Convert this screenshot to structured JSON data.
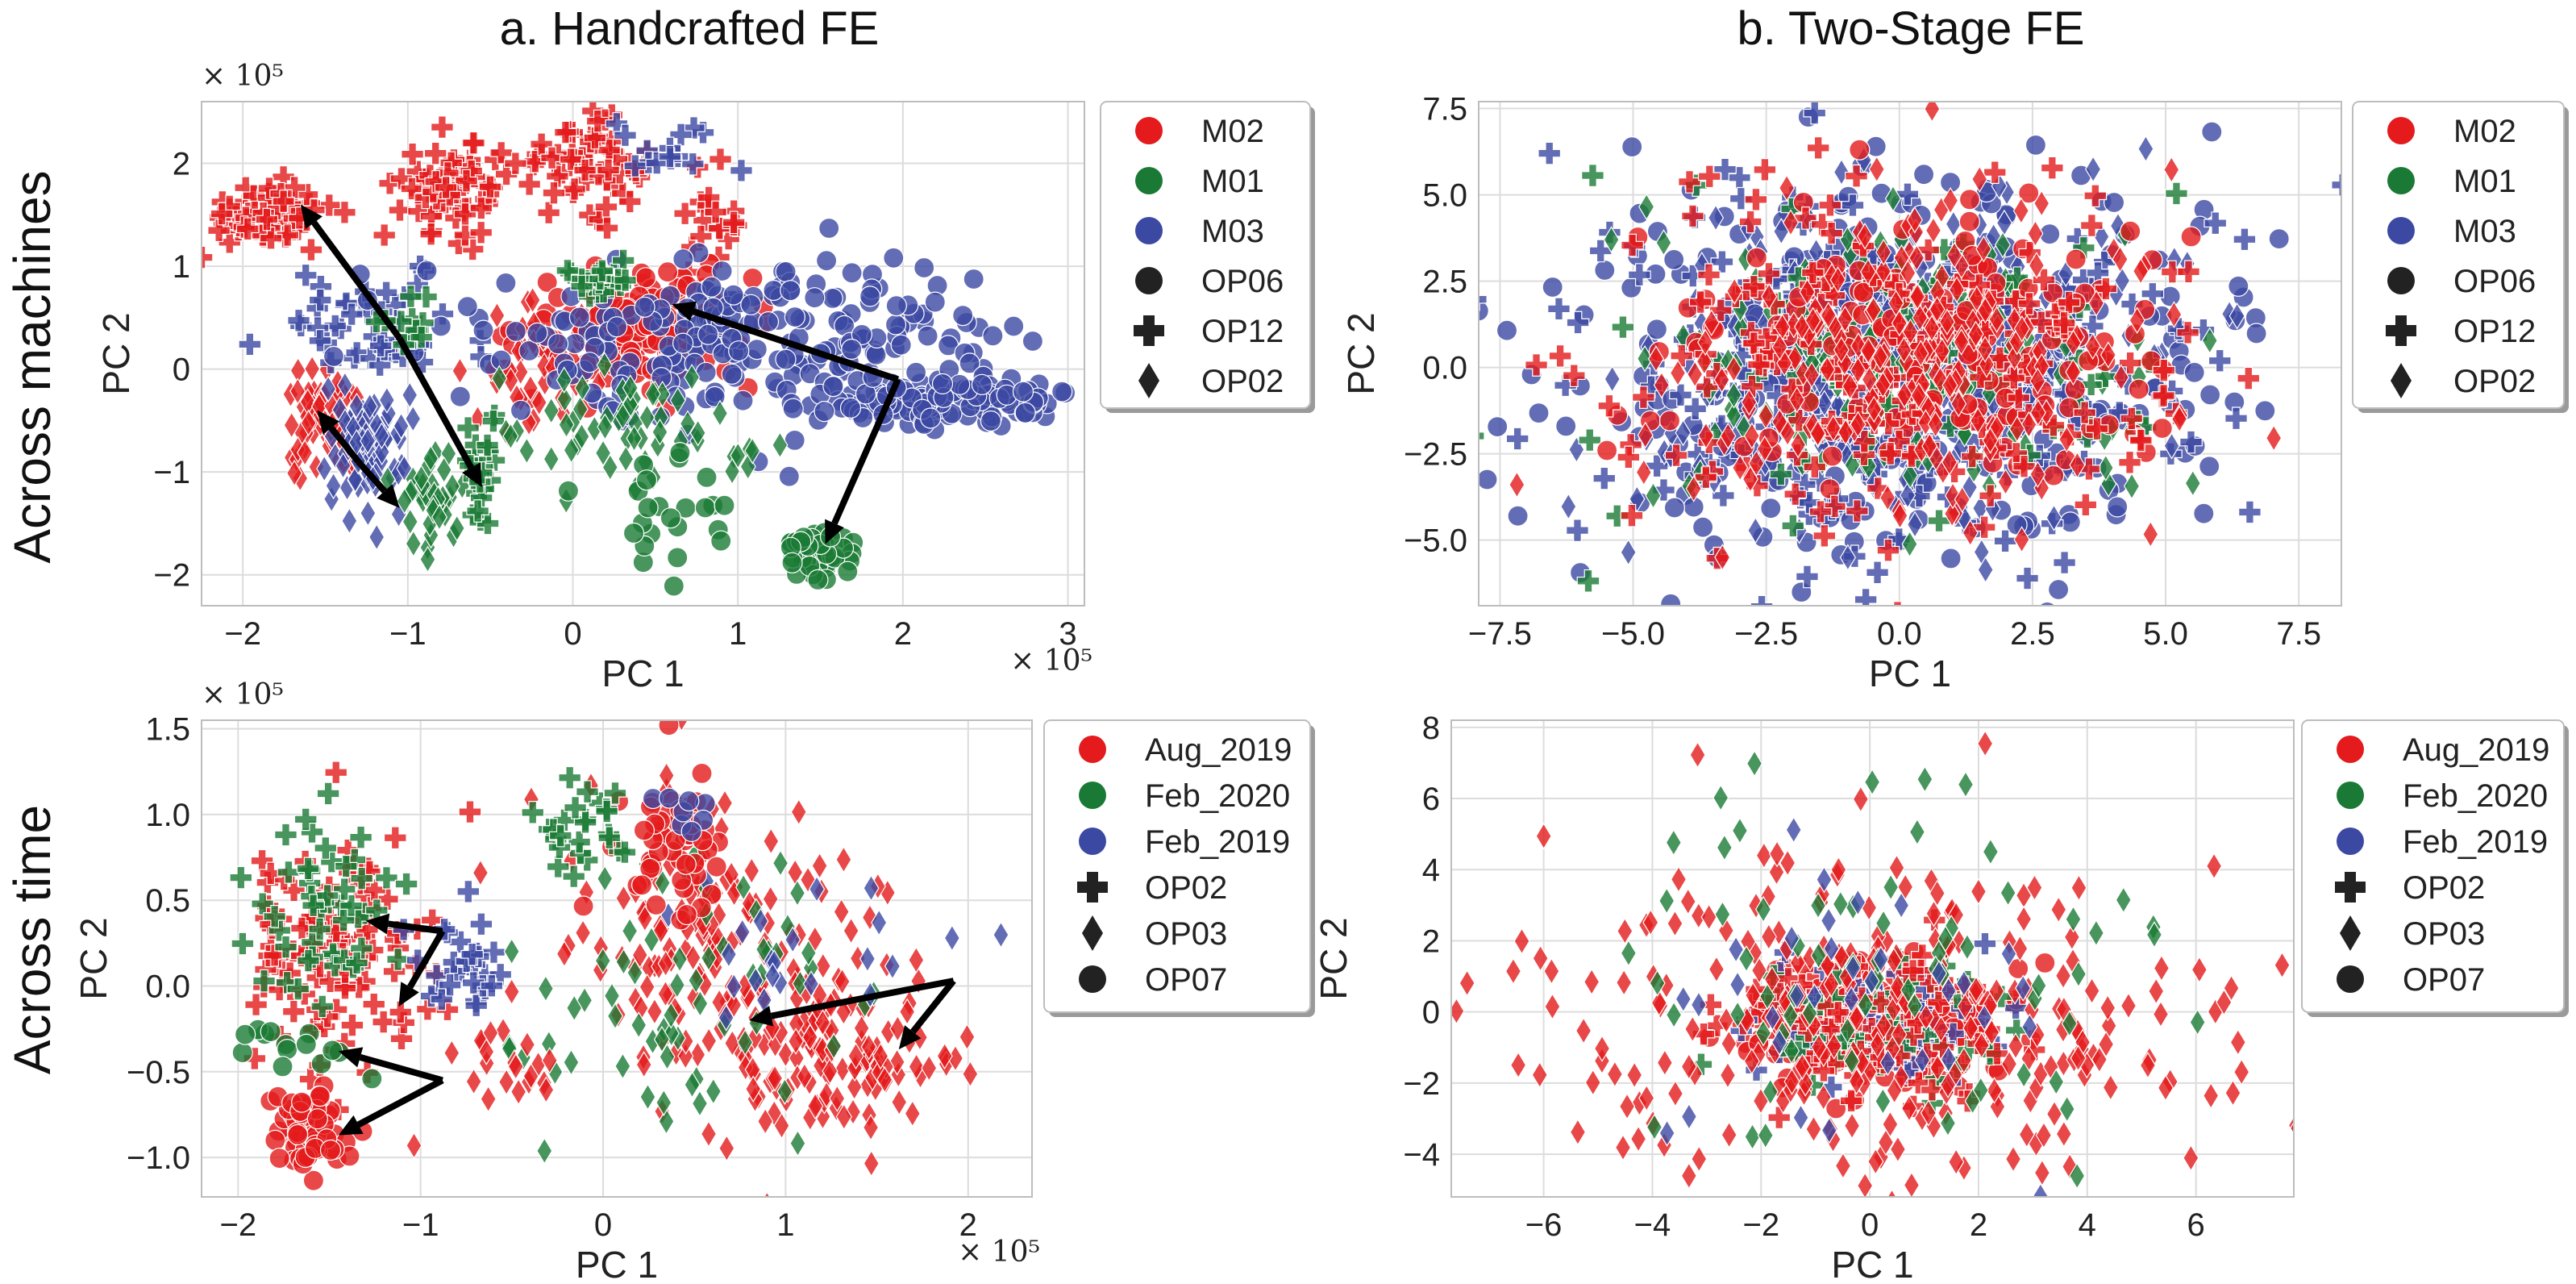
{
  "figure": {
    "column_titles": [
      "a. Handcrafted FE",
      "b. Two-Stage FE"
    ],
    "row_titles": [
      "Across machines",
      "Across time"
    ]
  },
  "colors": {
    "red": "#e41a1c",
    "green": "#1a7a35",
    "blue": "#3c49a3",
    "marker_black": "#222222"
  },
  "chart_data": [
    {
      "id": "a_top",
      "type": "scatter",
      "title": "",
      "xlabel": "PC 1",
      "ylabel": "PC 2",
      "xlim": [
        -2.25,
        3.1
      ],
      "ylim": [
        -2.3,
        2.6
      ],
      "xticks": [
        -2,
        -1,
        0,
        1,
        2,
        3
      ],
      "yticks": [
        -2,
        -1,
        0,
        1,
        2
      ],
      "xtick_labels": [
        "−2",
        "−1",
        "0",
        "1",
        "2",
        "3"
      ],
      "ytick_labels": [
        "−2",
        "−1",
        "0",
        "1",
        "2"
      ],
      "x_multiplier": "× 10⁵",
      "y_multiplier": "× 10⁵",
      "grid": true,
      "legend_position": "outside-right",
      "legend": [
        {
          "label": "M02",
          "marker": "circle",
          "color": "red"
        },
        {
          "label": "M01",
          "marker": "circle",
          "color": "green"
        },
        {
          "label": "M03",
          "marker": "circle",
          "color": "blue"
        },
        {
          "label": "OP06",
          "marker": "circle",
          "color": "marker_black"
        },
        {
          "label": "OP12",
          "marker": "plus",
          "color": "marker_black"
        },
        {
          "label": "OP02",
          "marker": "diamond",
          "color": "marker_black"
        }
      ],
      "clusters": [
        {
          "color": "red",
          "marker": "plus",
          "cx": -1.85,
          "cy": 1.5,
          "sx": 0.2,
          "sy": 0.15,
          "n": 70
        },
        {
          "color": "red",
          "marker": "plus",
          "cx": -0.7,
          "cy": 1.75,
          "sx": 0.17,
          "sy": 0.22,
          "n": 70
        },
        {
          "color": "red",
          "marker": "plus",
          "cx": 0.05,
          "cy": 2.0,
          "sx": 0.18,
          "sy": 0.2,
          "n": 60
        },
        {
          "color": "red",
          "marker": "plus",
          "cx": 0.85,
          "cy": 1.4,
          "sx": 0.12,
          "sy": 0.25,
          "n": 20
        },
        {
          "color": "red",
          "marker": "diamond",
          "cx": -1.5,
          "cy": -0.55,
          "sx": 0.12,
          "sy": 0.25,
          "n": 70
        },
        {
          "color": "red",
          "marker": "circle",
          "cx": 0.4,
          "cy": 0.4,
          "sx": 0.35,
          "sy": 0.3,
          "n": 140
        },
        {
          "color": "red",
          "marker": "diamond",
          "cx": -0.25,
          "cy": 0.0,
          "sx": 0.2,
          "sy": 0.3,
          "n": 40
        },
        {
          "color": "blue",
          "marker": "diamond",
          "cx": -1.25,
          "cy": -0.75,
          "sx": 0.12,
          "sy": 0.3,
          "n": 80
        },
        {
          "color": "blue",
          "marker": "plus",
          "cx": -1.2,
          "cy": 0.4,
          "sx": 0.3,
          "sy": 0.3,
          "n": 50
        },
        {
          "color": "blue",
          "marker": "circle",
          "cx": 1.1,
          "cy": 0.3,
          "sx": 0.8,
          "sy": 0.4,
          "n": 240
        },
        {
          "color": "blue",
          "marker": "circle",
          "cx": 2.3,
          "cy": -0.3,
          "sx": 0.35,
          "sy": 0.12,
          "n": 120
        },
        {
          "color": "blue",
          "marker": "plus",
          "cx": 0.6,
          "cy": 2.1,
          "sx": 0.25,
          "sy": 0.15,
          "n": 15
        },
        {
          "color": "green",
          "marker": "diamond",
          "cx": -0.85,
          "cy": -1.25,
          "sx": 0.1,
          "sy": 0.2,
          "n": 40
        },
        {
          "color": "green",
          "marker": "plus",
          "cx": -0.55,
          "cy": -1.1,
          "sx": 0.07,
          "sy": 0.25,
          "n": 25
        },
        {
          "color": "green",
          "marker": "diamond",
          "cx": 0.35,
          "cy": -0.6,
          "sx": 0.35,
          "sy": 0.3,
          "n": 60
        },
        {
          "color": "green",
          "marker": "circle",
          "cx": 1.5,
          "cy": -1.8,
          "sx": 0.12,
          "sy": 0.12,
          "n": 50
        },
        {
          "color": "green",
          "marker": "circle",
          "cx": 0.6,
          "cy": -1.35,
          "sx": 0.3,
          "sy": 0.35,
          "n": 25
        },
        {
          "color": "green",
          "marker": "plus",
          "cx": 0.15,
          "cy": 0.9,
          "sx": 0.1,
          "sy": 0.1,
          "n": 20
        },
        {
          "color": "green",
          "marker": "plus",
          "cx": -1.0,
          "cy": 0.45,
          "sx": 0.1,
          "sy": 0.15,
          "n": 12
        }
      ],
      "arrows": [
        {
          "from": [
            -1.05,
            0.3
          ],
          "to": [
            -1.65,
            1.6
          ]
        },
        {
          "from": [
            -1.05,
            0.3
          ],
          "to": [
            -0.55,
            -1.15
          ]
        },
        {
          "from": [
            -1.3,
            -0.9
          ],
          "to": [
            -1.55,
            -0.4
          ]
        },
        {
          "from": [
            -1.3,
            -0.9
          ],
          "to": [
            -1.05,
            -1.35
          ]
        },
        {
          "from": [
            1.97,
            -0.1
          ],
          "to": [
            0.6,
            0.63
          ]
        },
        {
          "from": [
            1.97,
            -0.1
          ],
          "to": [
            1.53,
            -1.7
          ]
        }
      ]
    },
    {
      "id": "b_top",
      "type": "scatter",
      "title": "",
      "xlabel": "PC 1",
      "ylabel": "PC 2",
      "xlim": [
        -7.9,
        8.3
      ],
      "ylim": [
        -6.9,
        7.7
      ],
      "xticks": [
        -7.5,
        -5.0,
        -2.5,
        0.0,
        2.5,
        5.0,
        7.5
      ],
      "yticks": [
        -5.0,
        -2.5,
        0.0,
        2.5,
        5.0,
        7.5
      ],
      "xtick_labels": [
        "−7.5",
        "−5.0",
        "−2.5",
        "0.0",
        "2.5",
        "5.0",
        "7.5"
      ],
      "ytick_labels": [
        "−5.0",
        "−2.5",
        "0.0",
        "2.5",
        "5.0",
        "7.5"
      ],
      "grid": true,
      "legend_position": "outside-right",
      "legend": [
        {
          "label": "M02",
          "marker": "circle",
          "color": "red"
        },
        {
          "label": "M01",
          "marker": "circle",
          "color": "green"
        },
        {
          "label": "M03",
          "marker": "circle",
          "color": "blue"
        },
        {
          "label": "OP06",
          "marker": "circle",
          "color": "marker_black"
        },
        {
          "label": "OP12",
          "marker": "plus",
          "color": "marker_black"
        },
        {
          "label": "OP02",
          "marker": "diamond",
          "color": "marker_black"
        }
      ],
      "clusters": [
        {
          "color": "blue",
          "marker": "circle",
          "cx": 0.0,
          "cy": 0.0,
          "sx": 2.9,
          "sy": 2.8,
          "n": 420
        },
        {
          "color": "blue",
          "marker": "plus",
          "cx": 0.0,
          "cy": 0.0,
          "sx": 3.2,
          "sy": 3.0,
          "n": 200
        },
        {
          "color": "blue",
          "marker": "diamond",
          "cx": 0.0,
          "cy": 0.0,
          "sx": 2.7,
          "sy": 2.6,
          "n": 180
        },
        {
          "color": "green",
          "marker": "diamond",
          "cx": 0.0,
          "cy": 0.0,
          "sx": 2.2,
          "sy": 2.0,
          "n": 160
        },
        {
          "color": "green",
          "marker": "plus",
          "cx": 0.0,
          "cy": 0.0,
          "sx": 3.0,
          "sy": 2.8,
          "n": 50
        },
        {
          "color": "red",
          "marker": "circle",
          "cx": 0.5,
          "cy": 0.5,
          "sx": 2.2,
          "sy": 2.0,
          "n": 180
        },
        {
          "color": "red",
          "marker": "plus",
          "cx": 0.0,
          "cy": 0.0,
          "sx": 2.8,
          "sy": 2.6,
          "n": 170
        },
        {
          "color": "red",
          "marker": "diamond",
          "cx": 0.0,
          "cy": 0.0,
          "sx": 2.4,
          "sy": 2.2,
          "n": 220
        }
      ],
      "arrows": []
    },
    {
      "id": "a_bottom",
      "type": "scatter",
      "title": "",
      "xlabel": "PC 1",
      "ylabel": "PC 2",
      "xlim": [
        -2.2,
        2.35
      ],
      "ylim": [
        -1.23,
        1.55
      ],
      "xticks": [
        -2,
        -1,
        0,
        1,
        2
      ],
      "yticks": [
        -1.0,
        -0.5,
        0.0,
        0.5,
        1.0,
        1.5
      ],
      "xtick_labels": [
        "−2",
        "−1",
        "0",
        "1",
        "2"
      ],
      "ytick_labels": [
        "−1.0",
        "−0.5",
        "0.0",
        "0.5",
        "1.0",
        "1.5"
      ],
      "x_multiplier": "× 10⁵",
      "y_multiplier": "× 10⁵",
      "grid": true,
      "legend_position": "outside-right",
      "legend": [
        {
          "label": "Aug_2019",
          "marker": "circle",
          "color": "red"
        },
        {
          "label": "Feb_2020",
          "marker": "circle",
          "color": "green"
        },
        {
          "label": "Feb_2019",
          "marker": "circle",
          "color": "blue"
        },
        {
          "label": "OP02",
          "marker": "plus",
          "color": "marker_black"
        },
        {
          "label": "OP03",
          "marker": "diamond",
          "color": "marker_black"
        },
        {
          "label": "OP07",
          "marker": "circle",
          "color": "marker_black"
        }
      ],
      "clusters": [
        {
          "color": "red",
          "marker": "plus",
          "cx": -1.45,
          "cy": 0.2,
          "sx": 0.3,
          "sy": 0.35,
          "n": 110
        },
        {
          "color": "green",
          "marker": "plus",
          "cx": -1.55,
          "cy": 0.45,
          "sx": 0.2,
          "sy": 0.3,
          "n": 50
        },
        {
          "color": "blue",
          "marker": "plus",
          "cx": -0.8,
          "cy": 0.15,
          "sx": 0.15,
          "sy": 0.15,
          "n": 30
        },
        {
          "color": "red",
          "marker": "circle",
          "cx": -1.6,
          "cy": -0.85,
          "sx": 0.1,
          "sy": 0.12,
          "n": 60
        },
        {
          "color": "green",
          "marker": "circle",
          "cx": -1.75,
          "cy": -0.35,
          "sx": 0.15,
          "sy": 0.08,
          "n": 14
        },
        {
          "color": "red",
          "marker": "diamond",
          "cx": 1.25,
          "cy": -0.4,
          "sx": 0.35,
          "sy": 0.3,
          "n": 150
        },
        {
          "color": "red",
          "marker": "diamond",
          "cx": 0.5,
          "cy": 0.3,
          "sx": 0.4,
          "sy": 0.45,
          "n": 120
        },
        {
          "color": "green",
          "marker": "diamond",
          "cx": 0.4,
          "cy": -0.1,
          "sx": 0.45,
          "sy": 0.45,
          "n": 70
        },
        {
          "color": "blue",
          "marker": "diamond",
          "cx": 1.4,
          "cy": 0.2,
          "sx": 0.5,
          "sy": 0.2,
          "n": 25
        },
        {
          "color": "red",
          "marker": "circle",
          "cx": 0.4,
          "cy": 0.85,
          "sx": 0.15,
          "sy": 0.2,
          "n": 50
        },
        {
          "color": "green",
          "marker": "plus",
          "cx": -0.1,
          "cy": 0.9,
          "sx": 0.15,
          "sy": 0.15,
          "n": 25
        },
        {
          "color": "blue",
          "marker": "circle",
          "cx": 0.5,
          "cy": 1.05,
          "sx": 0.1,
          "sy": 0.1,
          "n": 8
        },
        {
          "color": "red",
          "marker": "diamond",
          "cx": -0.6,
          "cy": -0.5,
          "sx": 0.2,
          "sy": 0.15,
          "n": 20
        }
      ],
      "arrows": [
        {
          "from": [
            -0.88,
            0.32
          ],
          "to": [
            -1.3,
            0.38
          ]
        },
        {
          "from": [
            -0.88,
            0.32
          ],
          "to": [
            -1.12,
            -0.12
          ]
        },
        {
          "from": [
            -0.88,
            -0.55
          ],
          "to": [
            -1.45,
            -0.38
          ]
        },
        {
          "from": [
            -0.88,
            -0.55
          ],
          "to": [
            -1.45,
            -0.87
          ]
        },
        {
          "from": [
            1.92,
            0.03
          ],
          "to": [
            0.8,
            -0.2
          ]
        },
        {
          "from": [
            1.92,
            0.03
          ],
          "to": [
            1.62,
            -0.37
          ]
        }
      ]
    },
    {
      "id": "b_bottom",
      "type": "scatter",
      "title": "",
      "xlabel": "PC 1",
      "ylabel": "PC 2",
      "xlim": [
        -7.7,
        7.8
      ],
      "ylim": [
        -5.2,
        8.2
      ],
      "xticks": [
        -6,
        -4,
        -2,
        0,
        2,
        4,
        6
      ],
      "yticks": [
        -4,
        -2,
        0,
        2,
        4,
        6,
        8
      ],
      "xtick_labels": [
        "−6",
        "−4",
        "−2",
        "0",
        "2",
        "4",
        "6"
      ],
      "ytick_labels": [
        "−4",
        "−2",
        "0",
        "2",
        "4",
        "6",
        "8"
      ],
      "grid": true,
      "legend_position": "outside-right",
      "legend": [
        {
          "label": "Aug_2019",
          "marker": "circle",
          "color": "red"
        },
        {
          "label": "Feb_2020",
          "marker": "circle",
          "color": "green"
        },
        {
          "label": "Feb_2019",
          "marker": "circle",
          "color": "blue"
        },
        {
          "label": "OP02",
          "marker": "plus",
          "color": "marker_black"
        },
        {
          "label": "OP03",
          "marker": "diamond",
          "color": "marker_black"
        },
        {
          "label": "OP07",
          "marker": "circle",
          "color": "marker_black"
        }
      ],
      "clusters": [
        {
          "color": "red",
          "marker": "circle",
          "cx": 0.0,
          "cy": -0.3,
          "sx": 1.1,
          "sy": 0.9,
          "n": 220
        },
        {
          "color": "blue",
          "marker": "plus",
          "cx": 0.0,
          "cy": -0.3,
          "sx": 1.0,
          "sy": 0.8,
          "n": 80
        },
        {
          "color": "green",
          "marker": "plus",
          "cx": 0.0,
          "cy": -0.3,
          "sx": 1.2,
          "sy": 0.9,
          "n": 50
        },
        {
          "color": "red",
          "marker": "plus",
          "cx": 0.0,
          "cy": -0.3,
          "sx": 1.3,
          "sy": 1.0,
          "n": 80
        },
        {
          "color": "red",
          "marker": "diamond",
          "cx": 0.0,
          "cy": 0.0,
          "sx": 3.4,
          "sy": 2.6,
          "n": 280
        },
        {
          "color": "green",
          "marker": "diamond",
          "cx": 0.0,
          "cy": 0.5,
          "sx": 2.6,
          "sy": 2.6,
          "n": 70
        },
        {
          "color": "blue",
          "marker": "diamond",
          "cx": 0.0,
          "cy": 0.5,
          "sx": 2.4,
          "sy": 2.4,
          "n": 35
        }
      ],
      "arrows": []
    }
  ]
}
